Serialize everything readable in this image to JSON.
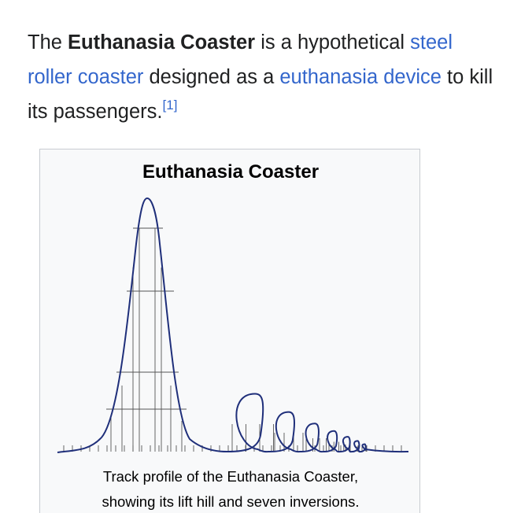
{
  "intro": {
    "prefix": "The ",
    "subject": "Euthanasia Coaster",
    "text1": " is a hypothetical ",
    "link1": "steel roller coaster",
    "text2": " designed as a ",
    "link2": "euthanasia device",
    "text3": " to kill its passengers.",
    "ref": "[1]"
  },
  "figure": {
    "title": "Euthanasia Coaster",
    "caption_line1": "Track profile of the Euthanasia Coaster,",
    "caption_line2": "showing its lift hill and seven inversions.",
    "track_color": "#1f2f7a",
    "support_color": "#555555"
  }
}
